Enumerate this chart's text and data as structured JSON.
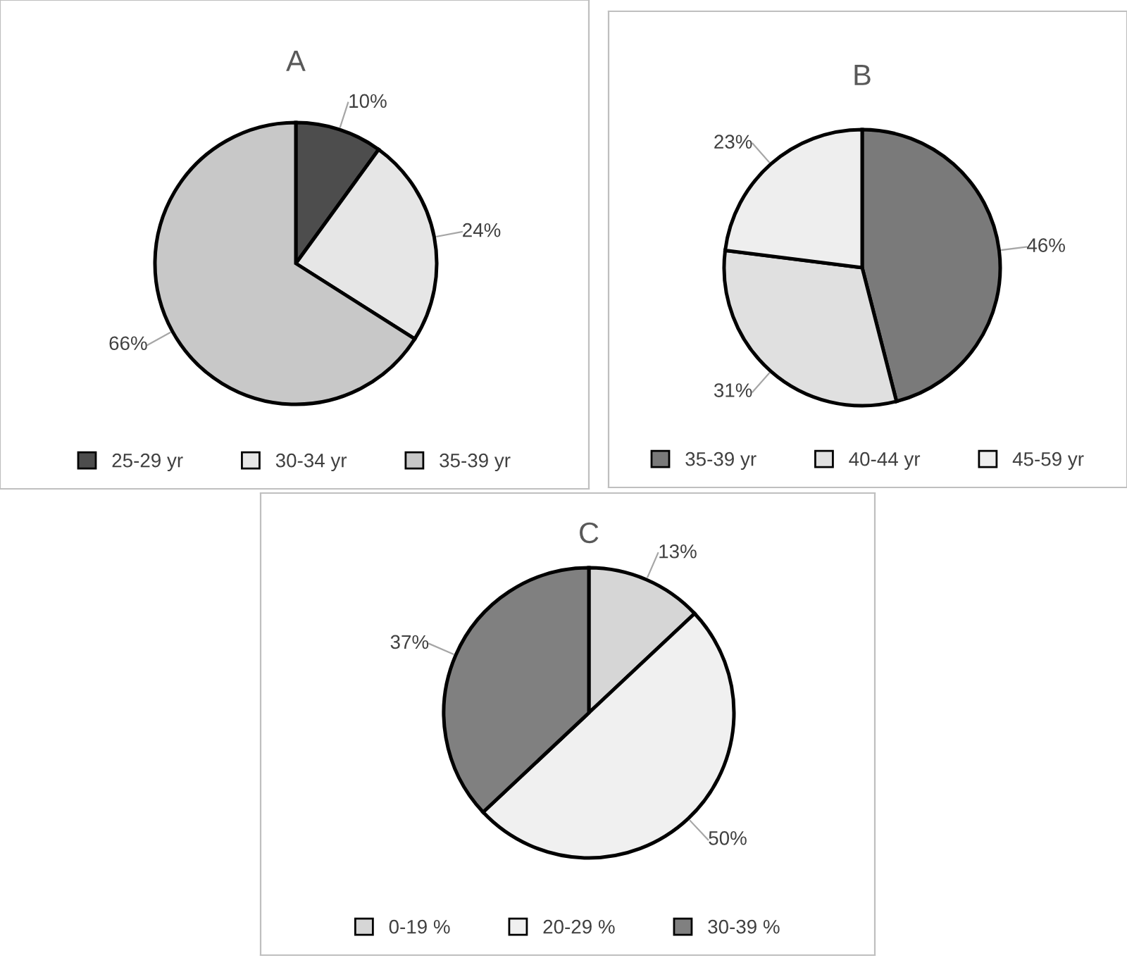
{
  "chart_data": [
    {
      "type": "pie",
      "title": "A",
      "categories": [
        "25-29 yr",
        "30-34 yr",
        "35-39 yr"
      ],
      "values": [
        10,
        24,
        66
      ],
      "value_labels": [
        "10%",
        "24%",
        "66%"
      ],
      "colors": [
        "#4d4d4d",
        "#e6e6e6",
        "#c8c8c8"
      ],
      "legend": "bottom"
    },
    {
      "type": "pie",
      "title": "B",
      "categories": [
        "35-39 yr",
        "40-44 yr",
        "45-59 yr"
      ],
      "values": [
        46,
        31,
        23
      ],
      "value_labels": [
        "46%",
        "31%",
        "23%"
      ],
      "colors": [
        "#7a7a7a",
        "#e0e0e0",
        "#eeeeee"
      ],
      "legend": "bottom"
    },
    {
      "type": "pie",
      "title": "C",
      "categories": [
        "0-19 %",
        "20-29 %",
        "30-39 %"
      ],
      "values": [
        13,
        50,
        37
      ],
      "value_labels": [
        "13%",
        "50%",
        "37%"
      ],
      "colors": [
        "#d6d6d6",
        "#f0f0f0",
        "#808080"
      ],
      "legend": "bottom"
    }
  ]
}
